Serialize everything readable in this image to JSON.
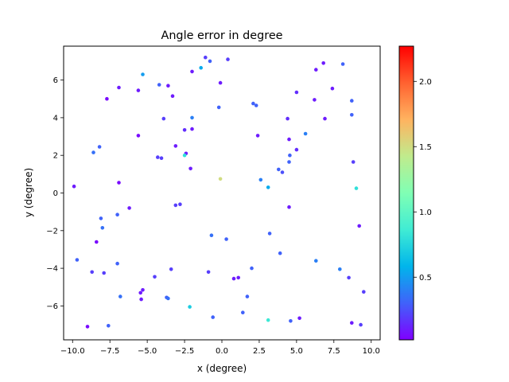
{
  "chart_data": {
    "type": "scatter",
    "title": "Angle error in degree",
    "xlabel": "x (degree)",
    "ylabel": "y (degree)",
    "xlim": [
      -10.6,
      10.6
    ],
    "ylim": [
      -7.8,
      7.8
    ],
    "xticks": [
      -10.0,
      -7.5,
      -5.0,
      -2.5,
      0.0,
      2.5,
      5.0,
      7.5,
      10.0
    ],
    "xtick_labels": [
      "−10.0",
      "−7.5",
      "−5.0",
      "−2.5",
      "0.0",
      "2.5",
      "5.0",
      "7.5",
      "10.0"
    ],
    "yticks": [
      -6,
      -4,
      -2,
      0,
      2,
      4,
      6
    ],
    "ytick_labels": [
      "−6",
      "−4",
      "−2",
      "0",
      "2",
      "4",
      "6"
    ],
    "grid": false,
    "colormap": "rainbow",
    "colorbar": {
      "vmin": 0.02,
      "vmax": 2.27,
      "ticks": [
        0.5,
        1.0,
        1.5,
        2.0
      ],
      "tick_labels": [
        "0.5",
        "1.0",
        "1.5",
        "2.0"
      ]
    },
    "points": [
      [
        -1.1,
        7.2,
        0.2
      ],
      [
        -0.8,
        7.0,
        0.3
      ],
      [
        0.4,
        7.1,
        0.2
      ],
      [
        -1.4,
        6.65,
        0.55
      ],
      [
        -2.0,
        6.45,
        0.1
      ],
      [
        -5.3,
        6.3,
        0.5
      ],
      [
        -4.2,
        5.75,
        0.3
      ],
      [
        -3.6,
        5.7,
        0.1
      ],
      [
        -6.9,
        5.6,
        0.1
      ],
      [
        -0.1,
        5.85,
        0.1
      ],
      [
        -5.6,
        5.45,
        0.1
      ],
      [
        -7.7,
        5.0,
        0.05
      ],
      [
        -3.3,
        5.15,
        0.1
      ],
      [
        -0.2,
        4.55,
        0.3
      ],
      [
        2.1,
        4.75,
        0.3
      ],
      [
        2.3,
        4.65,
        0.3
      ],
      [
        -3.9,
        3.95,
        0.2
      ],
      [
        -2.0,
        4.0,
        0.4
      ],
      [
        -2.5,
        3.35,
        0.15
      ],
      [
        -2.0,
        3.4,
        0.1
      ],
      [
        -5.6,
        3.05,
        0.05
      ],
      [
        -3.1,
        2.5,
        0.1
      ],
      [
        -2.4,
        2.1,
        0.1
      ],
      [
        -2.5,
        2.0,
        0.8
      ],
      [
        -4.3,
        1.9,
        0.2
      ],
      [
        -4.05,
        1.85,
        0.2
      ],
      [
        -2.1,
        1.3,
        0.1
      ],
      [
        -8.2,
        2.45,
        0.3
      ],
      [
        -8.6,
        2.15,
        0.35
      ],
      [
        -0.1,
        0.75,
        1.5
      ],
      [
        -6.9,
        0.55,
        0.05
      ],
      [
        -9.9,
        0.35,
        0.1
      ],
      [
        -6.2,
        -0.8,
        0.1
      ],
      [
        -7.0,
        -1.15,
        0.3
      ],
      [
        -8.1,
        -1.35,
        0.3
      ],
      [
        -8.0,
        -1.85,
        0.35
      ],
      [
        -8.4,
        -2.6,
        0.05
      ],
      [
        -3.1,
        -0.65,
        0.2
      ],
      [
        -2.8,
        -0.6,
        0.2
      ],
      [
        -9.7,
        -3.55,
        0.3
      ],
      [
        -8.7,
        -4.2,
        0.2
      ],
      [
        -7.9,
        -4.25,
        0.2
      ],
      [
        -7.0,
        -3.75,
        0.3
      ],
      [
        -3.4,
        -4.05,
        0.2
      ],
      [
        -4.5,
        -4.45,
        0.2
      ],
      [
        -0.9,
        -4.2,
        0.2
      ],
      [
        0.8,
        -4.55,
        0.1
      ],
      [
        1.1,
        -4.5,
        0.1
      ],
      [
        2.0,
        -4.0,
        0.3
      ],
      [
        -5.3,
        -5.15,
        0.1
      ],
      [
        -5.45,
        -5.3,
        0.1
      ],
      [
        -5.4,
        -5.65,
        0.1
      ],
      [
        -3.7,
        -5.55,
        0.3
      ],
      [
        -3.6,
        -5.6,
        0.35
      ],
      [
        -6.8,
        -5.5,
        0.35
      ],
      [
        -2.15,
        -6.05,
        0.7
      ],
      [
        1.7,
        -5.5,
        0.3
      ],
      [
        1.4,
        -6.35,
        0.3
      ],
      [
        -0.6,
        -6.6,
        0.3
      ],
      [
        -9.0,
        -7.1,
        0.05
      ],
      [
        -7.6,
        -7.05,
        0.3
      ],
      [
        3.1,
        -6.75,
        0.85
      ],
      [
        4.6,
        -6.8,
        0.3
      ],
      [
        5.2,
        -6.65,
        0.1
      ],
      [
        8.7,
        -6.9,
        0.1
      ],
      [
        9.3,
        -7.0,
        0.2
      ],
      [
        9.5,
        -5.25,
        0.2
      ],
      [
        8.5,
        -4.5,
        0.2
      ],
      [
        7.9,
        -4.05,
        0.4
      ],
      [
        6.3,
        -3.6,
        0.4
      ],
      [
        3.9,
        -3.2,
        0.3
      ],
      [
        3.2,
        -2.15,
        0.3
      ],
      [
        -0.7,
        -2.25,
        0.35
      ],
      [
        0.3,
        -2.45,
        0.3
      ],
      [
        4.5,
        -0.75,
        0.1
      ],
      [
        9.2,
        -1.75,
        0.1
      ],
      [
        9.0,
        0.25,
        0.8
      ],
      [
        3.1,
        0.3,
        0.55
      ],
      [
        2.6,
        0.7,
        0.4
      ],
      [
        3.8,
        1.25,
        0.3
      ],
      [
        4.05,
        1.1,
        0.25
      ],
      [
        4.5,
        1.65,
        0.3
      ],
      [
        4.55,
        2.0,
        0.3
      ],
      [
        5.0,
        2.3,
        0.15
      ],
      [
        8.8,
        1.65,
        0.2
      ],
      [
        4.5,
        2.85,
        0.1
      ],
      [
        5.6,
        3.15,
        0.4
      ],
      [
        2.4,
        3.05,
        0.1
      ],
      [
        4.4,
        3.95,
        0.15
      ],
      [
        6.9,
        3.95,
        0.1
      ],
      [
        8.7,
        4.15,
        0.3
      ],
      [
        8.7,
        4.9,
        0.3
      ],
      [
        6.2,
        4.95,
        0.1
      ],
      [
        5.0,
        5.35,
        0.15
      ],
      [
        7.4,
        5.55,
        0.1
      ],
      [
        6.3,
        6.55,
        0.1
      ],
      [
        6.8,
        6.9,
        0.1
      ],
      [
        8.1,
        6.85,
        0.3
      ]
    ]
  }
}
